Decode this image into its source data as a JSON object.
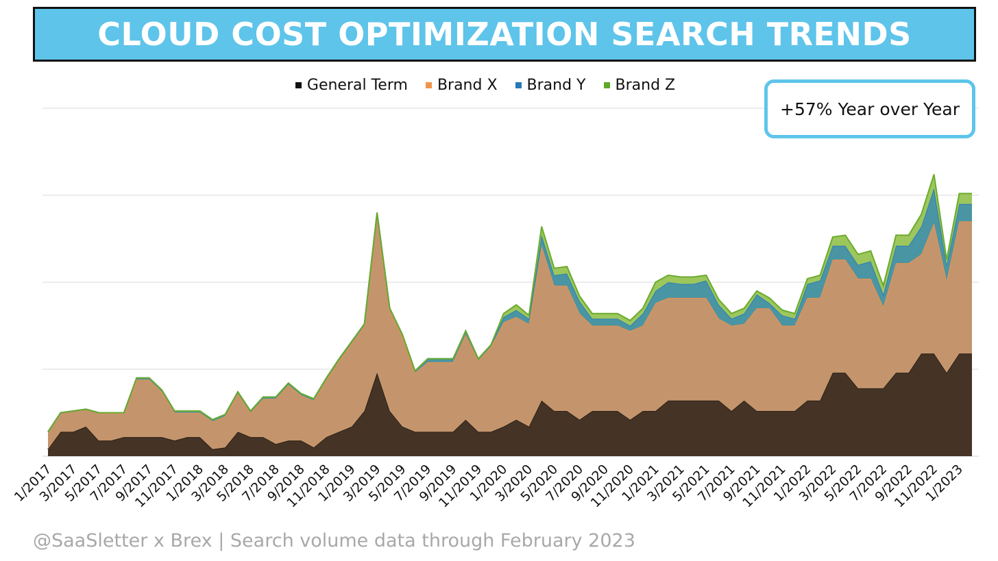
{
  "title": "CLOUD COST OPTIMIZATION SEARCH TRENDS",
  "callout": "+57% Year over Year",
  "footer": "@SaaSletter x Brex | Search volume data through February 2023",
  "colors": {
    "title_bg": "#5ec4ea",
    "general_term": "#453426",
    "brand_x": "#c4956c",
    "brand_y": "#4a95a3",
    "brand_z": "#9dc75d"
  },
  "chart_data": {
    "type": "area",
    "stacked": true,
    "legend_position": "top",
    "grid": true,
    "x_tick_labels": [
      "1/2017",
      "3/2017",
      "5/2017",
      "7/2017",
      "9/2017",
      "11/2017",
      "1/2018",
      "3/2018",
      "5/2018",
      "7/2018",
      "9/2018",
      "11/2018",
      "1/2019",
      "3/2019",
      "5/2019",
      "7/2019",
      "9/2019",
      "11/2019",
      "1/2020",
      "3/2020",
      "5/2020",
      "7/2020",
      "9/2020",
      "11/2020",
      "1/2021",
      "3/2021",
      "5/2021",
      "7/2021",
      "9/2021",
      "11/2021",
      "1/2022",
      "3/2022",
      "5/2022",
      "7/2022",
      "9/2022",
      "11/2022",
      "1/2023"
    ],
    "x": [
      "1/2017",
      "2/2017",
      "3/2017",
      "4/2017",
      "5/2017",
      "6/2017",
      "7/2017",
      "8/2017",
      "9/2017",
      "10/2017",
      "11/2017",
      "12/2017",
      "1/2018",
      "2/2018",
      "3/2018",
      "4/2018",
      "5/2018",
      "6/2018",
      "7/2018",
      "8/2018",
      "9/2018",
      "10/2018",
      "11/2018",
      "12/2018",
      "1/2019",
      "2/2019",
      "3/2019",
      "4/2019",
      "5/2019",
      "6/2019",
      "7/2019",
      "8/2019",
      "9/2019",
      "10/2019",
      "11/2019",
      "12/2019",
      "1/2020",
      "2/2020",
      "3/2020",
      "4/2020",
      "5/2020",
      "6/2020",
      "7/2020",
      "8/2020",
      "9/2020",
      "10/2020",
      "11/2020",
      "12/2020",
      "1/2021",
      "2/2021",
      "3/2021",
      "4/2021",
      "5/2021",
      "6/2021",
      "7/2021",
      "8/2021",
      "9/2021",
      "10/2021",
      "11/2021",
      "12/2021",
      "1/2022",
      "2/2022",
      "3/2022",
      "4/2022",
      "5/2022",
      "6/2022",
      "7/2022",
      "8/2022",
      "9/2022",
      "10/2022",
      "11/2022",
      "12/2022",
      "1/2023",
      "2/2023"
    ],
    "ylim": [
      0,
      100
    ],
    "series": [
      {
        "name": "General Term",
        "color": "#453426",
        "values": [
          2,
          7,
          7,
          8.5,
          4.5,
          4.5,
          5.5,
          5.5,
          5.5,
          5.5,
          4.5,
          5.5,
          5.5,
          2,
          2.5,
          7,
          5.5,
          5.5,
          3.5,
          4.5,
          4.5,
          2.5,
          5.5,
          7,
          8.5,
          13,
          24,
          13,
          8.5,
          7,
          7,
          7,
          7,
          10.5,
          7,
          7,
          8.5,
          10.5,
          8.5,
          16,
          13,
          13,
          10.5,
          13,
          13,
          13,
          10.5,
          13,
          13,
          16,
          16,
          16,
          16,
          16,
          13,
          16,
          13,
          13,
          13,
          13,
          16,
          16,
          24,
          24,
          19.5,
          19.5,
          19.5,
          24,
          24,
          29.5,
          29.5,
          24,
          29.5,
          29.5
        ]
      },
      {
        "name": "Brand X",
        "color": "#c4956c",
        "values": [
          5,
          5.5,
          6,
          5,
          8,
          8,
          7,
          16.5,
          16.5,
          13,
          8,
          7,
          7,
          8,
          9,
          11,
          7,
          11,
          13,
          16,
          13,
          13.5,
          16.5,
          20.5,
          24,
          24.5,
          45.5,
          29,
          26,
          17,
          20,
          20,
          20,
          24.5,
          20.5,
          24.5,
          30,
          29.5,
          29.5,
          44.5,
          36,
          36,
          30.5,
          24.5,
          24.5,
          24.5,
          25.5,
          24.5,
          31,
          29.5,
          29.5,
          29.5,
          29.5,
          23.5,
          24.5,
          22,
          29.5,
          29.5,
          24.5,
          24.5,
          29.5,
          29.5,
          32.5,
          32.5,
          31.5,
          31.5,
          23.5,
          31.5,
          31.5,
          28.5,
          37.5,
          26.5,
          38,
          38
        ]
      },
      {
        "name": "Brand Y",
        "color": "#4a95a3",
        "values": [
          0,
          0,
          0,
          0,
          0,
          0,
          0,
          0.5,
          0.5,
          0.5,
          0.5,
          0.5,
          0.5,
          0.5,
          0.5,
          0.5,
          0.5,
          0.5,
          0.5,
          0.5,
          0.5,
          0.5,
          0.5,
          0.5,
          0.5,
          0.5,
          0.5,
          0.5,
          0.5,
          0.5,
          1,
          1,
          1,
          1,
          0.5,
          0.5,
          1.5,
          2,
          1.5,
          3,
          3,
          3.5,
          3.5,
          2,
          2,
          2,
          1.5,
          3.5,
          3.5,
          4.5,
          4,
          4,
          5,
          4,
          2,
          3,
          4,
          1.5,
          3,
          2,
          4,
          5,
          4,
          4,
          4,
          5,
          3.5,
          5,
          5,
          8,
          10,
          4.5,
          5,
          5
        ]
      },
      {
        "name": "Brand Z",
        "color": "#9dc75d",
        "values": [
          0,
          0,
          0,
          0,
          0,
          0,
          0,
          0,
          0,
          0,
          0,
          0,
          0,
          0,
          0,
          0,
          0,
          0,
          0,
          0,
          0,
          0,
          0,
          0,
          0,
          0,
          0,
          0,
          0,
          0,
          0,
          0,
          0,
          0,
          0,
          0,
          1,
          1.5,
          1,
          2.5,
          2,
          2,
          1.5,
          1.5,
          1.5,
          1.5,
          1.5,
          1.5,
          2.5,
          2,
          2,
          2,
          1.5,
          1.5,
          1.5,
          1.5,
          1,
          1.5,
          1.5,
          1.5,
          1.5,
          1.5,
          2.5,
          3,
          3,
          3,
          2.5,
          3,
          3,
          3.5,
          4,
          1.5,
          3,
          3
        ]
      }
    ]
  }
}
